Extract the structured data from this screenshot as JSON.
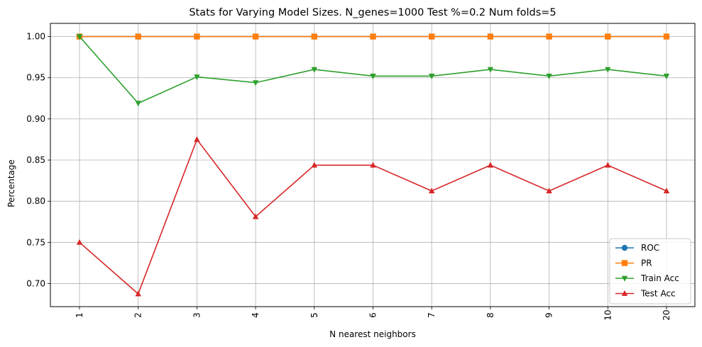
{
  "chart_data": {
    "type": "line",
    "title": "Stats for Varying Model Sizes. N_genes=1000 Test %=0.2 Num folds=5",
    "xlabel": "N nearest neighbors",
    "ylabel": "Percentage",
    "categories": [
      "1",
      "2",
      "3",
      "4",
      "5",
      "6",
      "7",
      "8",
      "9",
      "10",
      "20"
    ],
    "ylim": [
      0.672,
      1.016
    ],
    "yticks": [
      "0.70",
      "0.75",
      "0.80",
      "0.85",
      "0.90",
      "0.95",
      "1.00"
    ],
    "ytick_values": [
      0.7,
      0.75,
      0.8,
      0.85,
      0.9,
      0.95,
      1.0
    ],
    "grid": true,
    "legend_position": "bottom-right",
    "series": [
      {
        "name": "ROC",
        "color": "#1f77b4",
        "marker": "circle",
        "values": [
          1.0,
          1.0,
          1.0,
          1.0,
          1.0,
          1.0,
          1.0,
          1.0,
          1.0,
          1.0,
          1.0
        ]
      },
      {
        "name": "PR",
        "color": "#ff7f0e",
        "marker": "square",
        "values": [
          1.0,
          1.0,
          1.0,
          1.0,
          1.0,
          1.0,
          1.0,
          1.0,
          1.0,
          1.0,
          1.0
        ]
      },
      {
        "name": "Train Acc",
        "color": "#2ca02c",
        "marker": "triangle-down",
        "values": [
          1.0,
          0.919,
          0.951,
          0.944,
          0.96,
          0.952,
          0.952,
          0.96,
          0.952,
          0.96,
          0.952
        ]
      },
      {
        "name": "Test Acc",
        "color": "#d62728",
        "marker": "triangle-up",
        "values": [
          0.75,
          0.6875,
          0.875,
          0.78125,
          0.84375,
          0.84375,
          0.8125,
          0.84375,
          0.8125,
          0.84375,
          0.8125
        ]
      }
    ]
  }
}
